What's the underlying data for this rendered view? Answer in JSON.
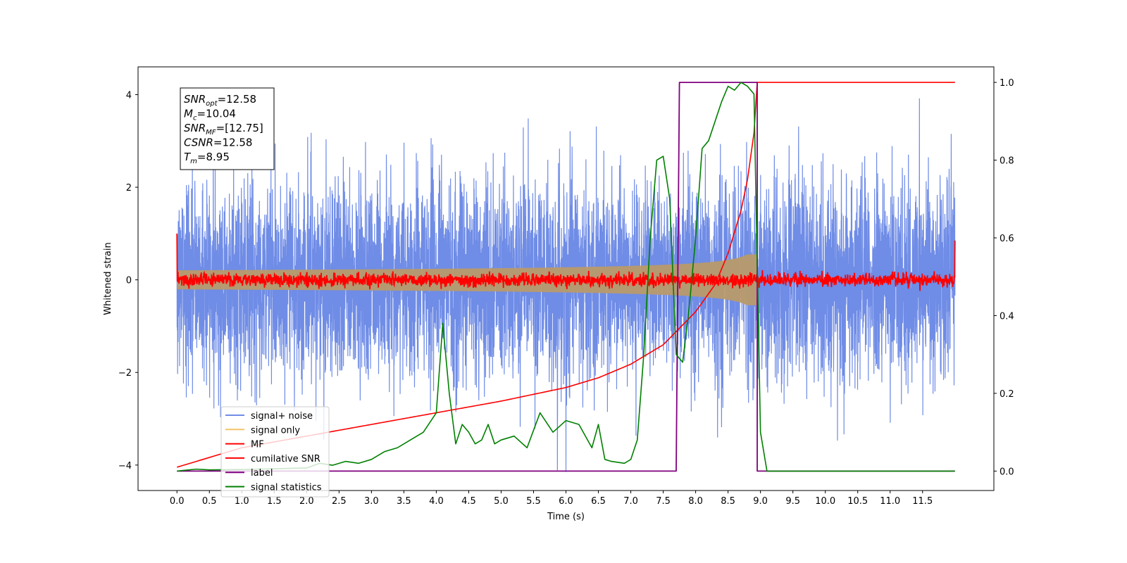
{
  "chart_data": {
    "type": "line",
    "xlabel": "Time (s)",
    "ylabel": "Whitened strain",
    "xlim": [
      -0.6,
      12.6
    ],
    "ylim": [
      -4.55,
      4.6
    ],
    "ylim_right": [
      -0.05,
      1.04
    ],
    "x_ticks": [
      "0.0",
      "0.5",
      "1.0",
      "1.5",
      "2.0",
      "2.5",
      "3.0",
      "3.5",
      "4.0",
      "4.5",
      "5.0",
      "5.5",
      "6.0",
      "6.5",
      "7.0",
      "7.5",
      "8.0",
      "8.5",
      "9.0",
      "9.5",
      "10.0",
      "10.5",
      "11.0",
      "11.5"
    ],
    "y_ticks_left": [
      "4",
      "2",
      "0",
      "−2",
      "−4"
    ],
    "y_ticks_right": [
      "1.0",
      "0.8",
      "0.6",
      "0.4",
      "0.2",
      "0.0"
    ],
    "grid": false,
    "legend_position": "lower-left",
    "annotation": [
      {
        "base": "SNR",
        "sub": "opt",
        "value": "=12.58"
      },
      {
        "base": "M",
        "sub": "c",
        "value": "=10.04"
      },
      {
        "base": "SNR",
        "sub": "MF",
        "value": "=[12.75]"
      },
      {
        "base": "CSNR",
        "sub": "",
        "value": "=12.58"
      },
      {
        "base": "T",
        "sub": "m",
        "value": "=8.95"
      }
    ],
    "series": [
      {
        "name": "signal+ noise",
        "color": "#6f8ce6",
        "axis": "left",
        "kind": "noise",
        "t_start": 0.0,
        "t_end": 12.0,
        "sigma": 1.05,
        "max_abs": 4.15
      },
      {
        "name": "signal only",
        "color": "#f5c469",
        "axis": "left",
        "kind": "chirp_envelope",
        "t_start": 0.0,
        "t_end": 12.0,
        "merger_time": 8.95,
        "peak_amplitude": 0.95
      },
      {
        "name": "MF",
        "color": "#ff0000",
        "axis": "left",
        "kind": "noise",
        "t_start": 0.0,
        "t_end": 12.0,
        "sigma": 0.07,
        "edge_values": [
          1.0,
          0.85
        ]
      },
      {
        "name": "cumilative SNR",
        "color": "#ff0000",
        "axis": "right",
        "x": [
          0.0,
          1.0,
          2.0,
          3.0,
          4.0,
          5.0,
          6.0,
          6.5,
          7.0,
          7.5,
          8.0,
          8.3,
          8.5,
          8.7,
          8.8,
          8.9,
          8.95,
          12.0
        ],
        "y": [
          0.01,
          0.06,
          0.09,
          0.12,
          0.15,
          0.18,
          0.215,
          0.24,
          0.275,
          0.325,
          0.41,
          0.48,
          0.56,
          0.67,
          0.75,
          0.87,
          1.0,
          1.0
        ]
      },
      {
        "name": "label",
        "color": "#800080",
        "axis": "right",
        "x": [
          0.0,
          7.7,
          7.75,
          8.95,
          8.95,
          12.0
        ],
        "y": [
          0.0,
          0.0,
          1.0,
          1.0,
          0.0,
          0.0
        ]
      },
      {
        "name": "signal statistics",
        "color": "#008000",
        "axis": "right",
        "x": [
          0.0,
          0.3,
          0.5,
          1.0,
          1.5,
          2.0,
          2.2,
          2.4,
          2.6,
          2.8,
          3.0,
          3.2,
          3.4,
          3.6,
          3.8,
          4.0,
          4.1,
          4.2,
          4.3,
          4.4,
          4.5,
          4.6,
          4.7,
          4.8,
          4.9,
          5.0,
          5.2,
          5.4,
          5.6,
          5.8,
          6.0,
          6.2,
          6.4,
          6.5,
          6.6,
          6.7,
          6.9,
          7.0,
          7.1,
          7.2,
          7.3,
          7.4,
          7.5,
          7.6,
          7.7,
          7.8,
          7.9,
          8.0,
          8.1,
          8.2,
          8.3,
          8.4,
          8.5,
          8.6,
          8.7,
          8.8,
          8.9,
          9.0,
          9.1,
          12.0
        ],
        "y": [
          0.0,
          0.005,
          0.003,
          0.004,
          0.006,
          0.008,
          0.02,
          0.015,
          0.025,
          0.02,
          0.03,
          0.05,
          0.06,
          0.08,
          0.1,
          0.15,
          0.38,
          0.2,
          0.07,
          0.12,
          0.1,
          0.07,
          0.08,
          0.12,
          0.07,
          0.08,
          0.09,
          0.06,
          0.15,
          0.1,
          0.13,
          0.12,
          0.06,
          0.12,
          0.03,
          0.025,
          0.02,
          0.03,
          0.08,
          0.3,
          0.6,
          0.8,
          0.81,
          0.7,
          0.3,
          0.28,
          0.42,
          0.6,
          0.83,
          0.85,
          0.9,
          0.95,
          0.99,
          0.98,
          1.0,
          0.99,
          0.97,
          0.1,
          0.0,
          0.0
        ]
      }
    ]
  }
}
